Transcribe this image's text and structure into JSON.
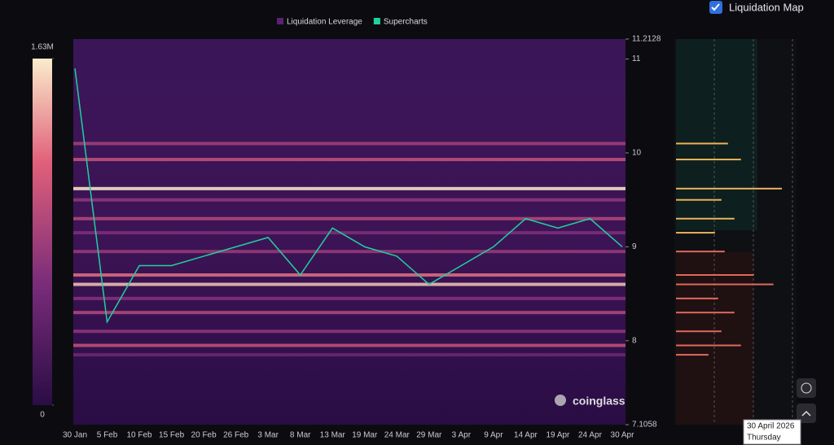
{
  "header": {
    "toggle_label": "Liquidation Map"
  },
  "watermark": "coinglass",
  "tooltip": {
    "date": "30 April 2026",
    "weekday": "Thursday"
  },
  "chart_data": {
    "type": "heatmap",
    "legend": [
      {
        "name": "Liquidation Leverage",
        "color": "#5a2270"
      },
      {
        "name": "Supercharts",
        "color": "#1fd1a0"
      }
    ],
    "categories": [
      "30 Jan",
      "5 Feb",
      "10 Feb",
      "15 Feb",
      "20 Feb",
      "26 Feb",
      "3 Mar",
      "8 Mar",
      "13 Mar",
      "19 Mar",
      "24 Mar",
      "29 Mar",
      "3 Apr",
      "9 Apr",
      "14 Apr",
      "19 Apr",
      "24 Apr",
      "30 Apr"
    ],
    "series": [
      {
        "name": "Supercharts",
        "color": "#1fd1a0",
        "values": [
          10.9,
          8.2,
          8.8,
          8.8,
          8.9,
          9.0,
          9.1,
          8.7,
          9.2,
          9.0,
          8.9,
          8.6,
          8.8,
          9.0,
          9.3,
          9.2,
          9.3,
          9.0
        ]
      }
    ],
    "ylim": [
      7.1058,
      11.2128
    ],
    "yticks": [
      11.2128,
      11,
      10,
      9,
      8,
      7.1058
    ],
    "levels": [
      10.1,
      9.93,
      9.62,
      9.5,
      9.3,
      9.15,
      8.95,
      8.7,
      8.6,
      8.45,
      8.3,
      8.1,
      7.95,
      7.85
    ],
    "amounts": [
      800000,
      1000000,
      1630000,
      700000,
      900000,
      600000,
      750000,
      1200000,
      1500000,
      650000,
      900000,
      700000,
      1000000,
      500000
    ],
    "colorbar_lim": [
      0,
      1630000
    ],
    "colorbar_ticks": [
      {
        "value": 1630000,
        "label": "1.63M"
      },
      0
    ]
  }
}
